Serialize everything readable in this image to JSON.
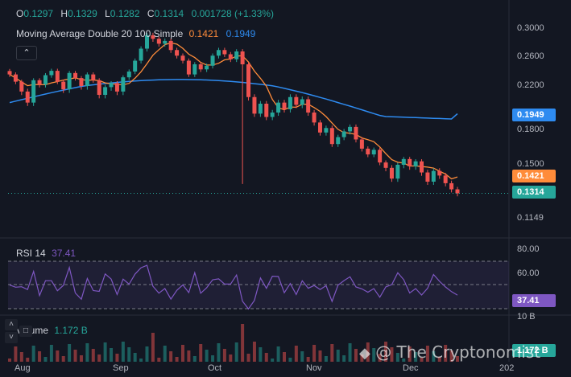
{
  "header": {
    "o_label": "O",
    "o_value": "0.1297",
    "h_label": "H",
    "h_value": "0.1329",
    "l_label": "L",
    "l_value": "0.1282",
    "c_label": "C",
    "c_value": "0.1314",
    "change": "0.001728",
    "change_pct": "(+1.33%)"
  },
  "indicator_ma": {
    "name": "Moving Average Double",
    "params": "20 100 Simple",
    "fast_value": "0.1421",
    "slow_value": "0.1949"
  },
  "indicator_rsi": {
    "name": "RSI",
    "period": "14",
    "value": "37.41"
  },
  "indicator_volume": {
    "name": "Volume",
    "value": "1.172 B"
  },
  "price_axis": [
    "0.3000",
    "0.2600",
    "0.2200",
    "0.1800",
    "0.1500",
    "0.1149"
  ],
  "rsi_axis": [
    "80.00",
    "60.00"
  ],
  "volume_axis_partial": "10 B",
  "tags": {
    "ma_slow": "0.1949",
    "ma_fast": "0.1421",
    "price": "0.1314",
    "rsi": "37.41",
    "volume": "1.172 B"
  },
  "time_axis": [
    "Aug",
    "Sep",
    "Oct",
    "Nov",
    "Dec",
    "202"
  ],
  "collapse_icon": "chevron-up-icon",
  "watermark": "@ The Cryptonomist",
  "colors": {
    "up": "#26a69a",
    "down": "#ef5350",
    "ma_fast": "#ff8c3a",
    "ma_slow": "#2e8bf0",
    "rsi": "#7e57c2",
    "background": "#131722"
  },
  "chart_data": {
    "type": "candlestick",
    "y_ticks": [
      0.3,
      0.26,
      0.22,
      0.18,
      0.15,
      0.1149
    ],
    "close_path": [
      0.236,
      0.226,
      0.215,
      0.205,
      0.228,
      0.222,
      0.235,
      0.241,
      0.226,
      0.217,
      0.238,
      0.231,
      0.22,
      0.236,
      0.228,
      0.212,
      0.219,
      0.224,
      0.215,
      0.232,
      0.24,
      0.255,
      0.272,
      0.291,
      0.286,
      0.279,
      0.283,
      0.27,
      0.262,
      0.255,
      0.236,
      0.25,
      0.243,
      0.248,
      0.262,
      0.27,
      0.264,
      0.257,
      0.268,
      0.25,
      0.21,
      0.195,
      0.204,
      0.192,
      0.196,
      0.205,
      0.199,
      0.21,
      0.203,
      0.208,
      0.196,
      0.187,
      0.178,
      0.182,
      0.168,
      0.174,
      0.179,
      0.183,
      0.172,
      0.164,
      0.159,
      0.163,
      0.152,
      0.148,
      0.141,
      0.15,
      0.155,
      0.149,
      0.153,
      0.145,
      0.139,
      0.146,
      0.143,
      0.138,
      0.134,
      0.1314
    ],
    "ma_fast_value": 0.1421,
    "ma_slow_value": 0.1949,
    "rsi_last": 37.41,
    "volume_last": "1.172 B"
  }
}
